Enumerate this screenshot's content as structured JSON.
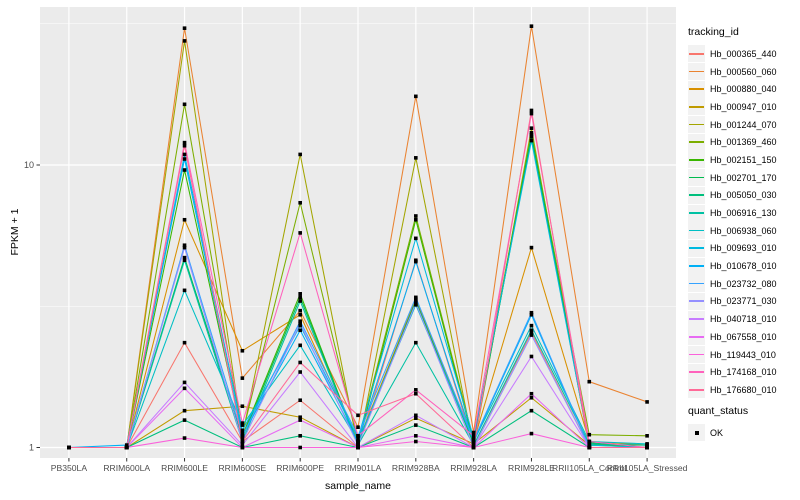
{
  "chart_data": {
    "type": "line",
    "title": "",
    "xlabel": "sample_name",
    "ylabel": "FPKM + 1",
    "y_scale": "log10",
    "ylim": [
      1,
      35
    ],
    "y_major_ticks": [
      10,
      1
    ],
    "y_minor_ticks": [
      31.623,
      3.162
    ],
    "grid": true,
    "legend_position": "right",
    "legend_title": "tracking_id",
    "quant_legend": {
      "title": "quant_status",
      "label": "OK",
      "marker": "black-filled-square"
    },
    "point_shape": "black-filled-square",
    "panel_background": "#EBEBEB",
    "gridline_color": "#FFFFFF",
    "tick_label_color": "#4D4D4D",
    "categories": [
      "PB350LA",
      "RRIM600LA",
      "RRIM600LE",
      "RRIM600SE",
      "RRIM600PE",
      "RRIM901LA",
      "RRIM928BA",
      "RRIM928LA",
      "RRIM928LE",
      "RRII105LA_Control",
      "RRII105LA_Stressed"
    ],
    "series": [
      {
        "name": "Hb_000365_440",
        "color": "#F8766D",
        "values": [
          1.0,
          1.0,
          2.35,
          1.05,
          1.47,
          1.0,
          4.6,
          1.02,
          2.55,
          1.0,
          1.0
        ]
      },
      {
        "name": "Hb_000560_060",
        "color": "#EA8331",
        "values": [
          1.0,
          1.0,
          30.5,
          1.76,
          3.05,
          1.18,
          17.5,
          1.13,
          31.0,
          1.71,
          1.45
        ]
      },
      {
        "name": "Hb_000880_040",
        "color": "#D89000",
        "values": [
          1.0,
          1.0,
          6.4,
          2.2,
          2.95,
          1.05,
          3.35,
          1.05,
          5.1,
          1.05,
          1.02
        ]
      },
      {
        "name": "Hb_000947_010",
        "color": "#C09B00",
        "values": [
          1.0,
          1.0,
          1.35,
          1.4,
          1.28,
          1.0,
          1.27,
          1.03,
          1.5,
          1.02,
          1.0
        ]
      },
      {
        "name": "Hb_001244_070",
        "color": "#A3A500",
        "values": [
          1.0,
          1.0,
          27.5,
          1.1,
          10.9,
          1.0,
          10.6,
          1.0,
          13.5,
          1.0,
          1.0
        ]
      },
      {
        "name": "Hb_001369_460",
        "color": "#7CAE00",
        "values": [
          1.0,
          1.0,
          16.4,
          1.12,
          7.35,
          1.05,
          6.6,
          1.06,
          13.0,
          1.11,
          1.1
        ]
      },
      {
        "name": "Hb_002151_150",
        "color": "#39B600",
        "values": [
          1.0,
          1.0,
          9.6,
          1.1,
          3.5,
          1.02,
          6.4,
          1.04,
          12.6,
          1.02,
          1.02
        ]
      },
      {
        "name": "Hb_002701_170",
        "color": "#00BB4E",
        "values": [
          1.0,
          1.0,
          4.7,
          1.08,
          3.4,
          1.03,
          3.3,
          1.03,
          12.8,
          1.04,
          1.0
        ]
      },
      {
        "name": "Hb_005050_030",
        "color": "#00BF7D",
        "values": [
          1.0,
          1.0,
          1.25,
          1.0,
          1.1,
          1.0,
          1.2,
          1.0,
          1.35,
          1.0,
          1.0
        ]
      },
      {
        "name": "Hb_006916_130",
        "color": "#00C1A3",
        "values": [
          1.0,
          1.0,
          4.6,
          1.05,
          3.3,
          1.02,
          2.35,
          1.02,
          2.6,
          1.03,
          1.02
        ]
      },
      {
        "name": "Hb_006938_060",
        "color": "#00BFC4",
        "values": [
          1.0,
          1.0,
          3.6,
          1.2,
          2.3,
          1.05,
          3.2,
          1.05,
          2.7,
          1.05,
          1.03
        ]
      },
      {
        "name": "Hb_009693_010",
        "color": "#00BAE0",
        "values": [
          1.0,
          1.0,
          10.9,
          1.15,
          2.7,
          1.08,
          5.5,
          1.08,
          12.2,
          1.02,
          1.0
        ]
      },
      {
        "name": "Hb_010678_010",
        "color": "#00B0F6",
        "values": [
          1.0,
          1.02,
          10.5,
          1.1,
          2.6,
          1.05,
          4.55,
          1.05,
          2.95,
          1.0,
          1.0
        ]
      },
      {
        "name": "Hb_023732_080",
        "color": "#35A2FF",
        "values": [
          1.0,
          1.0,
          5.2,
          1.1,
          2.8,
          1.1,
          3.4,
          1.06,
          3.0,
          1.0,
          1.0
        ]
      },
      {
        "name": "Hb_023771_030",
        "color": "#9590FF",
        "values": [
          1.0,
          1.0,
          5.1,
          1.05,
          2.75,
          1.02,
          3.25,
          1.0,
          2.5,
          1.0,
          1.0
        ]
      },
      {
        "name": "Hb_040718_010",
        "color": "#C77CFF",
        "values": [
          1.0,
          1.0,
          1.7,
          1.02,
          1.85,
          1.0,
          1.3,
          1.0,
          2.1,
          1.0,
          1.0
        ]
      },
      {
        "name": "Hb_067558_010",
        "color": "#E76BF3",
        "values": [
          1.0,
          1.0,
          1.62,
          1.0,
          1.25,
          1.0,
          1.1,
          1.0,
          1.55,
          1.0,
          1.0
        ]
      },
      {
        "name": "Hb_119443_010",
        "color": "#FA62DB",
        "values": [
          1.0,
          1.0,
          1.08,
          1.0,
          1.0,
          1.0,
          1.05,
          1.0,
          1.12,
          1.0,
          1.0
        ]
      },
      {
        "name": "Hb_174168_010",
        "color": "#FF62BC",
        "values": [
          1.0,
          1.0,
          12.0,
          1.22,
          5.75,
          1.1,
          1.6,
          1.1,
          15.2,
          1.05,
          1.0
        ]
      },
      {
        "name": "Hb_176680_010",
        "color": "#FF6A98",
        "values": [
          1.0,
          1.0,
          11.7,
          1.05,
          2.0,
          1.3,
          1.55,
          1.0,
          15.6,
          1.0,
          1.0
        ]
      }
    ]
  }
}
